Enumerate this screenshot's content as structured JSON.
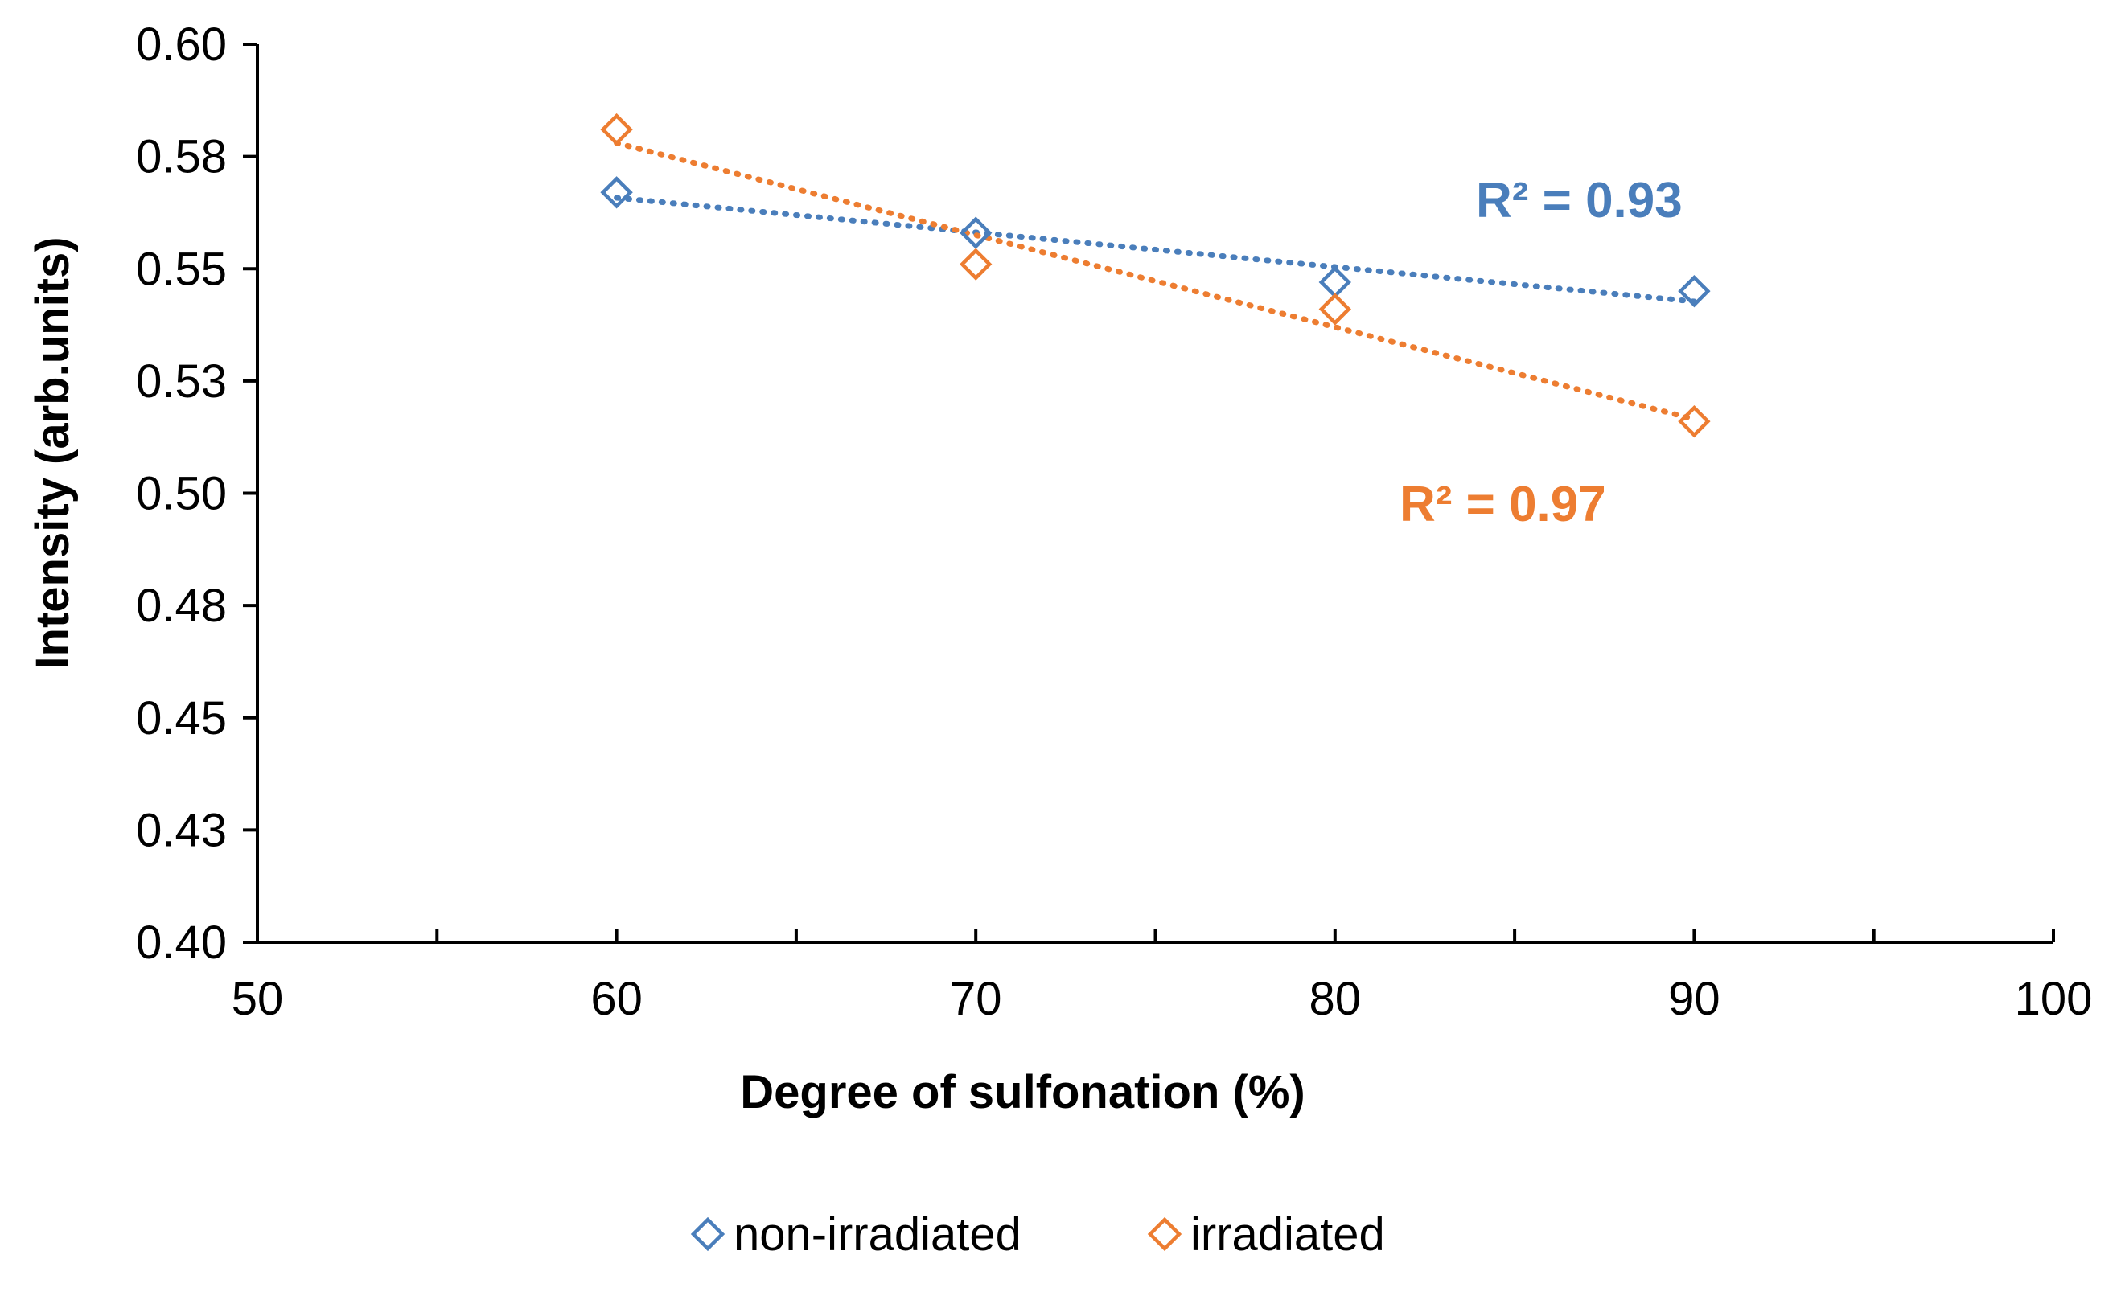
{
  "chart_data": {
    "type": "scatter",
    "xlabel": "Degree of sulfonation (%)",
    "ylabel": "Intensity (arb.units)",
    "xlim": [
      50,
      100
    ],
    "ylim": [
      0.4,
      0.6
    ],
    "x_ticks": [
      50,
      60,
      70,
      80,
      90,
      100
    ],
    "x_tick_labels": [
      "50",
      "60",
      "70",
      "80",
      "90",
      "100"
    ],
    "y_ticks": [
      0.4,
      0.425,
      0.45,
      0.475,
      0.5,
      0.525,
      0.55,
      0.575,
      0.6
    ],
    "y_tick_labels": [
      "0.40",
      "0.43",
      "0.45",
      "0.48",
      "0.50",
      "0.53",
      "0.55",
      "0.58",
      "0.60"
    ],
    "grid": false,
    "legend_position": "bottom",
    "series": [
      {
        "name": "non-irradiated",
        "color": "#4a7ebb",
        "marker": "diamond-open",
        "x": [
          60,
          70,
          80,
          90
        ],
        "y": [
          0.567,
          0.558,
          0.547,
          0.545
        ],
        "trendline": {
          "type": "linear",
          "style": "dotted",
          "label": "R² = 0.93"
        }
      },
      {
        "name": "irradiated",
        "color": "#ed7d31",
        "marker": "diamond-open",
        "x": [
          60,
          70,
          80,
          90
        ],
        "y": [
          0.581,
          0.551,
          0.541,
          0.516
        ],
        "trendline": {
          "type": "linear",
          "style": "dotted",
          "label": "R² = 0.97"
        }
      }
    ]
  }
}
